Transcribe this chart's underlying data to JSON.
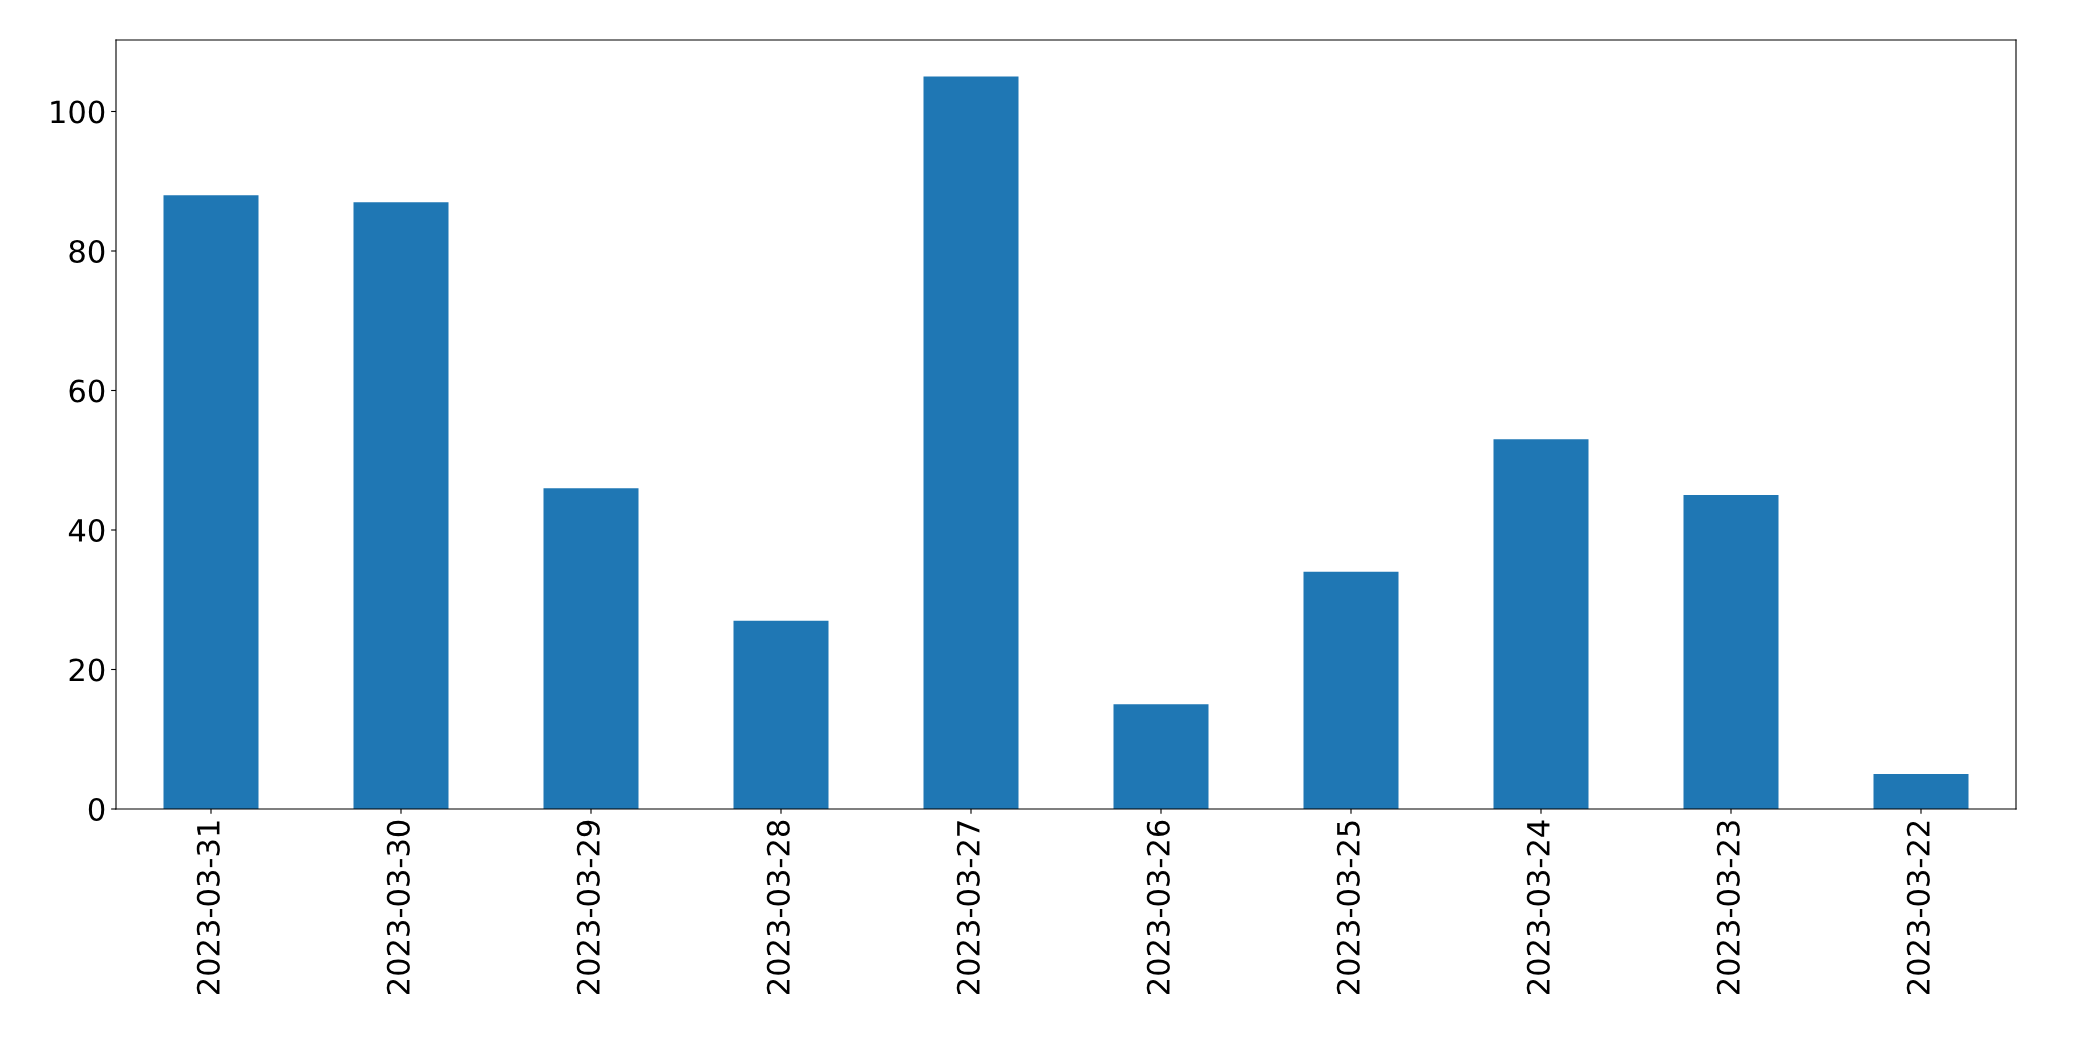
{
  "chart_data": {
    "type": "bar",
    "categories": [
      "2023-03-31",
      "2023-03-30",
      "2023-03-29",
      "2023-03-28",
      "2023-03-27",
      "2023-03-26",
      "2023-03-25",
      "2023-03-24",
      "2023-03-23",
      "2023-03-22"
    ],
    "values": [
      88,
      87,
      46,
      27,
      105,
      15,
      34,
      53,
      45,
      5
    ],
    "color": "#1f77b4",
    "ylim": [
      0,
      110.25
    ],
    "yticks": [
      0,
      20,
      40,
      60,
      80,
      100
    ],
    "grid": false,
    "legend": false
  }
}
